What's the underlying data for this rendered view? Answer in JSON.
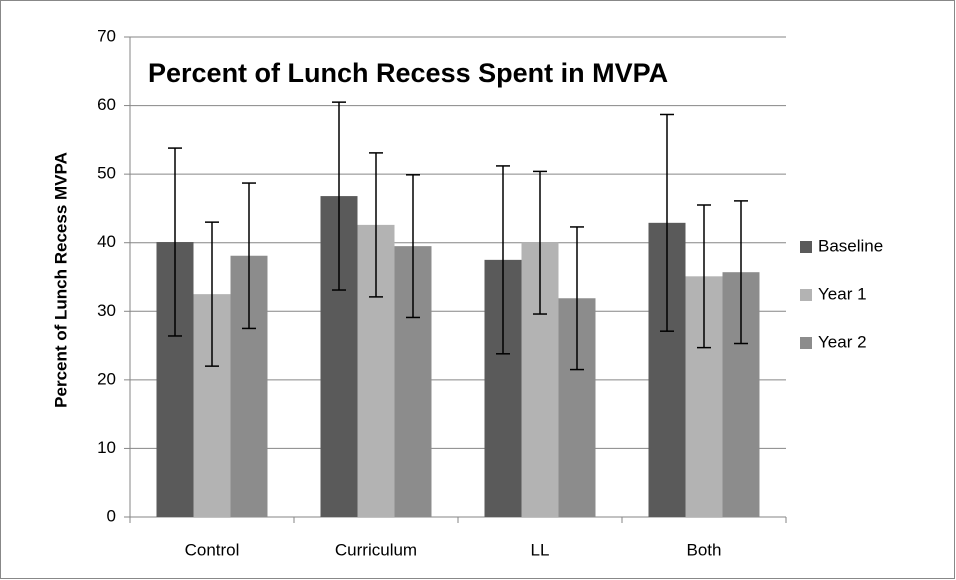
{
  "chart_data": {
    "type": "bar",
    "title": "Percent of Lunch Recess Spent in MVPA",
    "y_label": "Percent of Lunch Recess MVPA",
    "categories": [
      "Control",
      "Curriculum",
      "LL",
      "Both"
    ],
    "series": [
      {
        "name": "Baseline",
        "color": "#5a5a5a",
        "values": [
          40.1,
          46.8,
          37.5,
          42.9
        ],
        "errors": [
          13.7,
          13.7,
          13.7,
          15.8
        ]
      },
      {
        "name": "Year 1",
        "color": "#b3b3b3",
        "values": [
          32.5,
          42.6,
          40.0,
          35.1
        ],
        "errors": [
          10.5,
          10.5,
          10.4,
          10.4
        ]
      },
      {
        "name": "Year 2",
        "color": "#8c8c8c",
        "values": [
          38.1,
          39.5,
          31.9,
          35.7
        ],
        "errors": [
          10.6,
          10.4,
          10.4,
          10.4
        ]
      }
    ],
    "ylim": [
      0,
      70
    ],
    "yticks": [
      0,
      10,
      20,
      30,
      40,
      50,
      60,
      70
    ],
    "grid": true,
    "legend": "right"
  }
}
